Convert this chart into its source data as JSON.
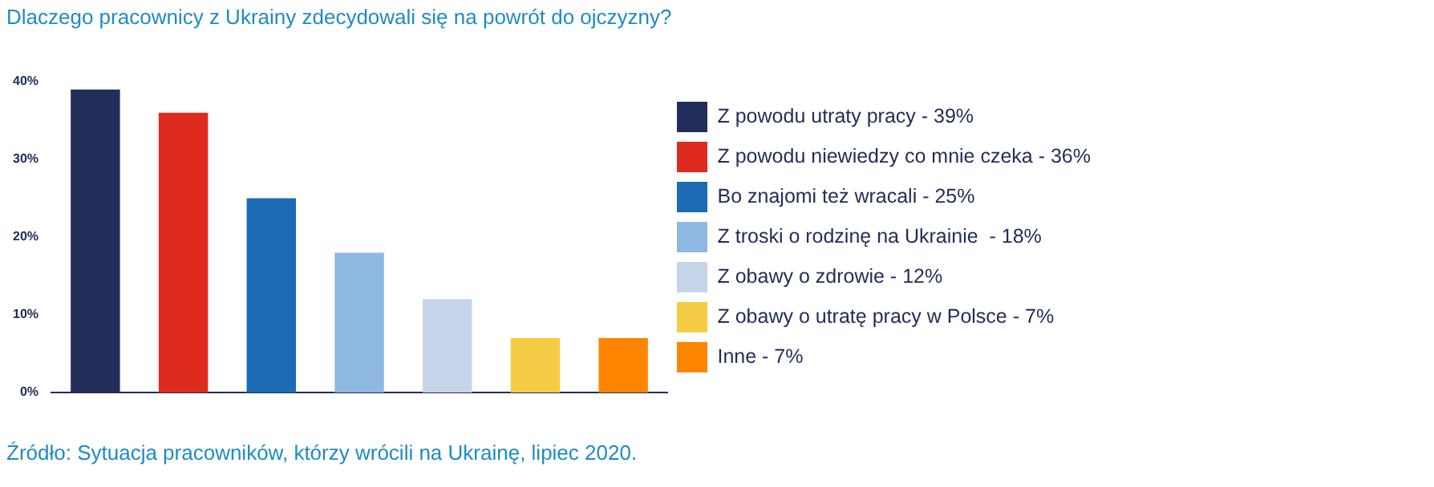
{
  "chart_data": {
    "type": "bar",
    "title": "Dlaczego pracownicy z Ukrainy zdecydowali się na powrót do ojczyzny?",
    "categories": [
      null,
      null,
      null,
      null,
      null,
      null,
      null
    ],
    "stacked": true,
    "series": [
      {
        "name": "Z powodu utraty pracy - 39%",
        "color": "#232d5a",
        "values": [
          39,
          null,
          null,
          null,
          null,
          null,
          null
        ]
      },
      {
        "name": "Z powodu niewiedzy co mnie czeka - 36%",
        "color": "#de2a1f",
        "values": [
          null,
          36,
          null,
          null,
          null,
          null,
          null
        ]
      },
      {
        "name": "Bo znajomi też wracali - 25%",
        "color": "#1c6bb4",
        "values": [
          null,
          null,
          25,
          null,
          null,
          null,
          null
        ]
      },
      {
        "name": "Z troski o rodzinę na Ukrainie  - 18%",
        "color": "#8fb8e3",
        "values": [
          null,
          null,
          null,
          18,
          null,
          null,
          null
        ]
      },
      {
        "name": "Z obawy o zdrowie - 12%",
        "color": "#c5d4e8",
        "values": [
          null,
          null,
          null,
          null,
          12,
          null,
          null
        ]
      },
      {
        "name": "Z obawy o utratę pracy w Polsce - 7%",
        "color": "#f5cc44",
        "values": [
          null,
          null,
          null,
          null,
          null,
          7,
          null
        ]
      },
      {
        "name": "Inne - 7%",
        "color": "#ff8500",
        "values": [
          null,
          null,
          null,
          null,
          null,
          null,
          7
        ]
      }
    ],
    "ylim": [
      0,
      40
    ],
    "yticks": [
      {
        "value": 0,
        "label": "0%"
      },
      {
        "value": 10,
        "label": "10%"
      },
      {
        "value": 20,
        "label": "20%"
      },
      {
        "value": 30,
        "label": "30%"
      },
      {
        "value": 40,
        "label": "40%"
      }
    ],
    "grid": false,
    "legend": "right",
    "tick_labels": "y",
    "annotations": [
      "Źródło: Sytuacja pracowników, którzy wrócili na Ukrainę, lipiec 2020."
    ]
  }
}
